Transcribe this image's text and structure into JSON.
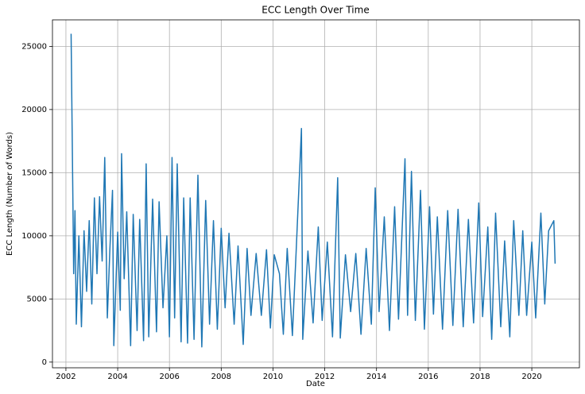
{
  "chart_data": {
    "type": "line",
    "title": "ECC Length Over Time",
    "x_label": "Date",
    "y_label": "ECC Length (Number of Words)",
    "color": "#1f77b4",
    "grid": true,
    "xlim": [
      2001.48,
      2021.84
    ],
    "ylim": [
      -450,
      27100
    ],
    "xticks": [
      2002,
      2004,
      2006,
      2008,
      2010,
      2012,
      2014,
      2016,
      2018,
      2020
    ],
    "yticks": [
      0,
      5000,
      10000,
      15000,
      20000,
      25000
    ],
    "x": [
      2002.2,
      2002.3,
      2002.35,
      2002.4,
      2002.5,
      2002.6,
      2002.7,
      2002.8,
      2002.9,
      2003.0,
      2003.1,
      2003.2,
      2003.3,
      2003.4,
      2003.5,
      2003.6,
      2003.7,
      2003.8,
      2003.85,
      2004.0,
      2004.1,
      2004.15,
      2004.25,
      2004.35,
      2004.5,
      2004.6,
      2004.75,
      2004.85,
      2005.0,
      2005.1,
      2005.2,
      2005.35,
      2005.5,
      2005.6,
      2005.75,
      2005.9,
      2006.0,
      2006.1,
      2006.2,
      2006.3,
      2006.45,
      2006.55,
      2006.7,
      2006.8,
      2006.95,
      2007.1,
      2007.25,
      2007.4,
      2007.55,
      2007.7,
      2007.85,
      2008.0,
      2008.15,
      2008.3,
      2008.5,
      2008.65,
      2008.85,
      2009.0,
      2009.15,
      2009.35,
      2009.55,
      2009.75,
      2009.9,
      2010.05,
      2010.25,
      2010.4,
      2010.55,
      2010.75,
      2010.9,
      2011.1,
      2011.15,
      2011.35,
      2011.55,
      2011.75,
      2011.9,
      2012.1,
      2012.3,
      2012.5,
      2012.6,
      2012.8,
      2013.0,
      2013.2,
      2013.4,
      2013.6,
      2013.8,
      2013.95,
      2014.1,
      2014.3,
      2014.5,
      2014.7,
      2014.85,
      2015.1,
      2015.2,
      2015.35,
      2015.5,
      2015.7,
      2015.85,
      2016.05,
      2016.2,
      2016.35,
      2016.55,
      2016.75,
      2016.95,
      2017.15,
      2017.35,
      2017.55,
      2017.75,
      2017.95,
      2018.1,
      2018.3,
      2018.45,
      2018.6,
      2018.8,
      2018.95,
      2019.15,
      2019.3,
      2019.5,
      2019.65,
      2019.8,
      2020.0,
      2020.15,
      2020.35,
      2020.5,
      2020.65,
      2020.85,
      2020.9
    ],
    "values": [
      26000,
      7000,
      12000,
      3000,
      10000,
      2800,
      10400,
      5600,
      11200,
      4600,
      13000,
      7000,
      13100,
      8000,
      16200,
      3500,
      9000,
      13600,
      1300,
      10300,
      4100,
      16500,
      6600,
      11900,
      1300,
      11700,
      2500,
      11300,
      1700,
      15700,
      2000,
      12900,
      2400,
      12700,
      4300,
      10000,
      2000,
      16200,
      3500,
      15700,
      1600,
      13000,
      1500,
      13000,
      1800,
      14800,
      1200,
      12800,
      3000,
      11200,
      2600,
      10600,
      4300,
      10200,
      3000,
      9200,
      1400,
      9000,
      3700,
      8600,
      3700,
      8900,
      2700,
      8500,
      7000,
      2200,
      9000,
      2100,
      9000,
      18500,
      1800,
      8800,
      3100,
      10700,
      3300,
      9500,
      2000,
      14600,
      1900,
      8500,
      4000,
      8600,
      2200,
      9000,
      3000,
      13800,
      4000,
      11500,
      2500,
      12300,
      3400,
      16100,
      3700,
      15100,
      3300,
      13600,
      2600,
      12300,
      3800,
      11500,
      2600,
      12000,
      2900,
      12100,
      2800,
      11300,
      3100,
      12600,
      3600,
      10700,
      1800,
      11800,
      2800,
      9600,
      2000,
      11200,
      3700,
      10400,
      3700,
      9500,
      3500,
      11800,
      4600,
      10400,
      11200,
      7800
    ]
  }
}
